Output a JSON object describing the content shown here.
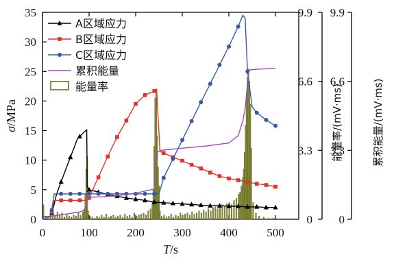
{
  "chart_data": {
    "type": "line",
    "xlabel": {
      "italic": "T",
      "rest": "/s"
    },
    "ylabel": {
      "italic": "σ",
      "rest": "/MPa"
    },
    "y2label": "能量率/(mV·ms)",
    "y3label": "累积能量/(mV·ms)",
    "xlim": [
      0,
      550
    ],
    "ylim": [
      0,
      35
    ],
    "y2lim": [
      0,
      9.9
    ],
    "y3lim": [
      0,
      9.9
    ],
    "xticks": [
      "0",
      "100",
      "200",
      "300",
      "400",
      "500"
    ],
    "yticks": [
      "0",
      "5",
      "10",
      "15",
      "20",
      "25",
      "30",
      "35"
    ],
    "y2ticks": [
      "0",
      "3.3",
      "6.6",
      "9.9"
    ],
    "y3ticks": [
      "0",
      "3.3",
      "6.6",
      "9.9"
    ],
    "grid": false,
    "legend_position": "top-left",
    "series": [
      {
        "name": "A区域应力",
        "color": "#000000",
        "marker": "triangle",
        "axis": "left",
        "x": [
          0,
          18,
          25,
          30,
          45,
          60,
          75,
          90,
          93,
          95,
          96,
          100,
          120,
          140,
          160,
          180,
          200,
          220,
          240,
          260,
          280,
          300,
          320,
          340,
          360,
          380,
          400,
          420,
          440,
          460,
          480,
          500
        ],
        "y": [
          0.5,
          0.5,
          2.5,
          4.2,
          7.4,
          10.5,
          13.6,
          14.8,
          15.0,
          15.1,
          5.5,
          5.0,
          4.6,
          4.2,
          3.9,
          3.6,
          3.4,
          3.2,
          2.9,
          2.8,
          2.7,
          2.6,
          2.5,
          2.4,
          2.3,
          2.3,
          2.2,
          2.2,
          2.1,
          2.1,
          2.0,
          2.0
        ]
      },
      {
        "name": "B区域应力",
        "color": "#e23427",
        "marker": "square",
        "axis": "left",
        "x": [
          0,
          18,
          25,
          40,
          60,
          80,
          95,
          100,
          120,
          140,
          160,
          180,
          200,
          220,
          240,
          245,
          252,
          260,
          280,
          300,
          320,
          340,
          360,
          380,
          400,
          420,
          440,
          460,
          480,
          500
        ],
        "y": [
          0.5,
          0.5,
          3.2,
          3.2,
          3.2,
          3.2,
          3.2,
          3.6,
          7.1,
          10.6,
          13.9,
          16.7,
          19.5,
          21.0,
          21.7,
          22.0,
          11.5,
          11.2,
          10.5,
          9.9,
          9.2,
          8.6,
          7.9,
          7.3,
          6.9,
          6.6,
          6.3,
          6.0,
          5.8,
          5.5
        ]
      },
      {
        "name": "C区域应力",
        "color": "#3658a8",
        "marker": "circle",
        "axis": "left",
        "x": [
          0,
          18,
          25,
          40,
          60,
          80,
          100,
          120,
          140,
          160,
          180,
          200,
          220,
          240,
          250,
          260,
          280,
          300,
          320,
          340,
          360,
          380,
          400,
          420,
          430,
          435,
          440,
          450,
          460,
          480,
          500
        ],
        "y": [
          0.5,
          0.5,
          4.3,
          4.3,
          4.3,
          4.3,
          4.3,
          4.3,
          4.3,
          4.3,
          4.3,
          4.3,
          4.3,
          4.3,
          4.3,
          7.0,
          10.2,
          13.4,
          16.6,
          19.8,
          22.9,
          26.1,
          29.2,
          32.6,
          34.5,
          34.0,
          25.0,
          19.0,
          18.0,
          16.8,
          15.8
        ]
      },
      {
        "name": "累积能量",
        "color": "#9f49b5",
        "marker": "none",
        "axis": "right2",
        "x": [
          0,
          20,
          80,
          92,
          96,
          100,
          150,
          200,
          240,
          243,
          246,
          255,
          300,
          350,
          400,
          420,
          430,
          435,
          440,
          443,
          446,
          460,
          480,
          500
        ],
        "y": [
          0.0,
          0.15,
          0.35,
          0.45,
          0.95,
          1.05,
          1.1,
          1.25,
          1.45,
          2.5,
          3.2,
          3.3,
          3.4,
          3.5,
          3.65,
          4.0,
          4.7,
          5.3,
          6.5,
          7.05,
          7.15,
          7.18,
          7.2,
          7.22
        ]
      }
    ],
    "energy_rate": {
      "name": "能量率",
      "color": "#8a9038",
      "axis": "right1",
      "x": [
        2,
        7,
        12,
        17,
        22,
        27,
        32,
        37,
        42,
        47,
        52,
        57,
        62,
        67,
        72,
        77,
        82,
        87,
        90,
        92,
        94,
        96,
        98,
        102,
        107,
        112,
        117,
        122,
        127,
        132,
        137,
        142,
        147,
        152,
        157,
        162,
        167,
        172,
        177,
        182,
        187,
        192,
        197,
        202,
        207,
        212,
        217,
        222,
        227,
        232,
        236,
        238,
        240,
        242,
        244,
        246,
        248,
        250,
        252,
        256,
        261,
        266,
        271,
        276,
        281,
        286,
        291,
        296,
        301,
        306,
        311,
        316,
        321,
        326,
        331,
        336,
        341,
        346,
        351,
        356,
        361,
        366,
        371,
        376,
        381,
        386,
        391,
        396,
        401,
        406,
        411,
        416,
        421,
        424,
        427,
        430,
        432,
        434,
        436,
        438,
        440,
        442,
        444,
        446,
        448,
        452,
        458,
        465,
        475,
        485,
        495
      ],
      "y": [
        0.7,
        0.1,
        0.05,
        0.2,
        0.3,
        0.15,
        0.35,
        0.2,
        0.3,
        0.1,
        0.25,
        0.15,
        0.1,
        0.2,
        0.15,
        0.3,
        0.2,
        0.35,
        0.5,
        1.2,
        2.4,
        3.0,
        0.4,
        0.15,
        0.1,
        0.05,
        0.15,
        0.1,
        0.2,
        0.1,
        0.25,
        0.1,
        0.15,
        0.2,
        0.1,
        0.15,
        0.2,
        0.1,
        0.25,
        0.15,
        0.2,
        0.1,
        0.3,
        0.15,
        0.2,
        0.25,
        0.3,
        0.2,
        0.4,
        0.5,
        0.8,
        1.4,
        3.5,
        5.8,
        6.2,
        4.0,
        2.5,
        1.6,
        0.4,
        0.15,
        0.2,
        0.1,
        0.15,
        0.25,
        0.1,
        0.2,
        0.15,
        0.3,
        0.2,
        0.25,
        0.3,
        0.2,
        0.35,
        0.25,
        0.3,
        0.4,
        0.3,
        0.45,
        0.35,
        0.5,
        0.4,
        0.55,
        0.6,
        0.5,
        0.65,
        0.7,
        0.6,
        0.75,
        0.8,
        0.7,
        0.9,
        1.0,
        1.2,
        1.3,
        1.6,
        2.0,
        2.4,
        3.2,
        4.5,
        5.8,
        6.8,
        7.2,
        6.6,
        5.5,
        3.4,
        0.8,
        0.3,
        0.15,
        0.1,
        0.05,
        0.05
      ]
    }
  }
}
